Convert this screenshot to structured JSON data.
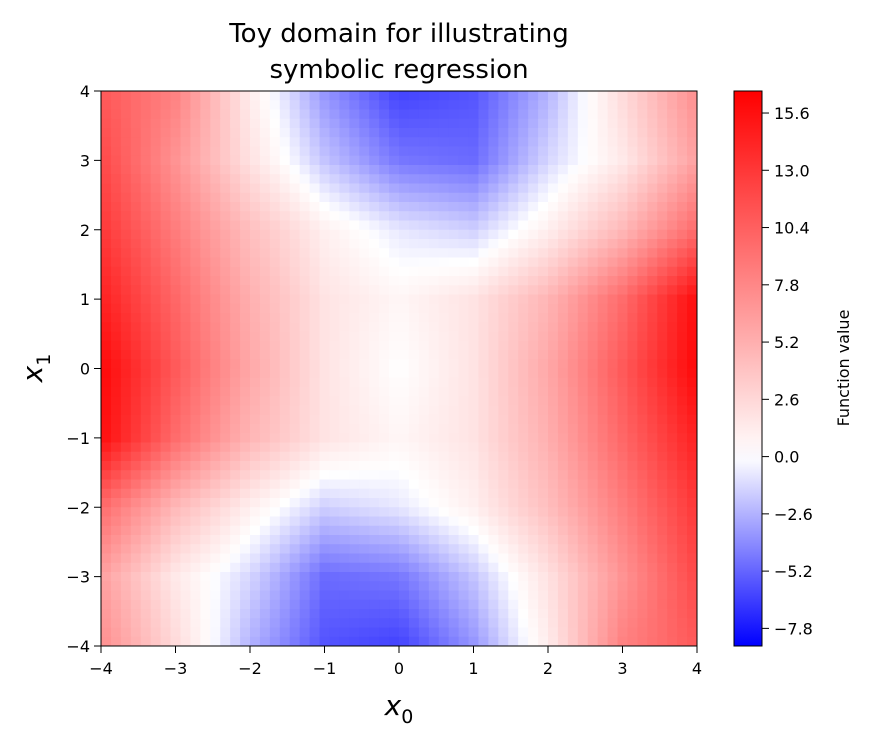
{
  "chart_data": {
    "type": "heatmap",
    "title": "Toy domain for illustrating symbolic regression",
    "title_lines": [
      "Toy domain for illustrating",
      "symbolic regression"
    ],
    "xlabel": {
      "base": "x",
      "sub": "0"
    },
    "ylabel": {
      "base": "x",
      "sub": "1"
    },
    "xlim": [
      -4,
      4
    ],
    "ylim": [
      -4,
      4
    ],
    "x_ticks": [
      -4,
      -3,
      -2,
      -1,
      0,
      1,
      2,
      3,
      4
    ],
    "y_ticks": [
      -4,
      -3,
      -2,
      -1,
      0,
      1,
      2,
      3,
      4
    ],
    "x_tick_labels": [
      "−4",
      "−3",
      "−2",
      "−1",
      "0",
      "1",
      "2",
      "3",
      "4"
    ],
    "y_tick_labels": [
      "−4",
      "−3",
      "−2",
      "−1",
      "0",
      "1",
      "2",
      "3",
      "4"
    ],
    "colormap": "bwr",
    "colors": {
      "low": "#0000ff",
      "mid": "#ffffff",
      "high": "#ff0000"
    },
    "value_range": [
      -8.6,
      16.6
    ],
    "grid": [
      {
        "y": 4,
        "values": [
          10.8,
          8.2,
          1.2,
          -3.6,
          -6.4,
          -5.8,
          -2.6,
          2.4,
          7.4
        ]
      },
      {
        "y": 3,
        "values": [
          11.9,
          7.0,
          1.9,
          -2.0,
          -4.6,
          -5.0,
          -1.4,
          1.4,
          6.2
        ]
      },
      {
        "y": 2,
        "values": [
          13.0,
          8.5,
          4.2,
          1.0,
          -0.8,
          -1.6,
          1.0,
          4.6,
          9.6
        ]
      },
      {
        "y": 1,
        "values": [
          14.5,
          9.9,
          5.2,
          1.8,
          0.6,
          1.8,
          4.8,
          9.6,
          15.8
        ]
      },
      {
        "y": 0,
        "values": [
          16.1,
          10.8,
          5.7,
          1.8,
          0.0,
          1.8,
          5.7,
          10.8,
          16.1
        ]
      },
      {
        "y": -1,
        "values": [
          15.8,
          9.6,
          4.8,
          1.8,
          0.6,
          1.8,
          5.2,
          9.9,
          14.5
        ]
      },
      {
        "y": -2,
        "values": [
          9.6,
          4.6,
          1.0,
          -1.6,
          -0.8,
          1.0,
          4.2,
          8.5,
          13.0
        ]
      },
      {
        "y": -3,
        "values": [
          6.2,
          1.4,
          -1.4,
          -5.0,
          -4.6,
          -2.0,
          1.9,
          7.0,
          11.9
        ]
      },
      {
        "y": -4,
        "values": [
          7.4,
          2.4,
          -2.6,
          -5.8,
          -6.4,
          -3.6,
          1.2,
          8.2,
          10.8
        ]
      }
    ],
    "colorbar": {
      "label": "Function value",
      "ticks": [
        15.6,
        13.0,
        10.4,
        7.8,
        5.2,
        2.6,
        0.0,
        -2.6,
        -5.2,
        -7.8
      ],
      "tick_labels": [
        "15.6",
        "13.0",
        "10.4",
        "7.8",
        "5.2",
        "2.6",
        "0.0",
        "−2.6",
        "−5.2",
        "−7.8"
      ],
      "range": [
        -8.6,
        16.6
      ]
    }
  }
}
